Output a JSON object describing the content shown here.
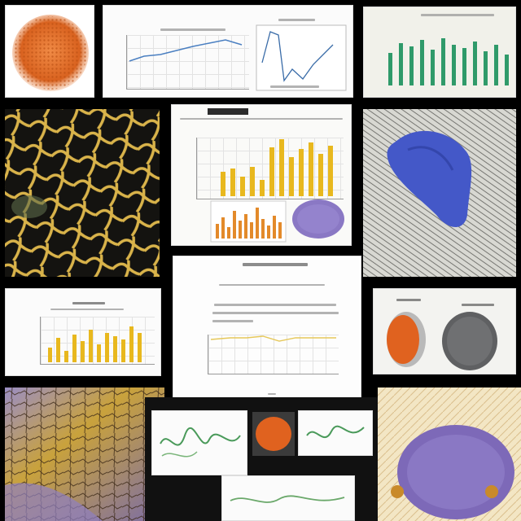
{
  "colors": {
    "background": "#000000",
    "paper": "#f6f6f3",
    "bar_yellow": "#e8b81e",
    "bar_orange": "#e38a2a",
    "line_blue": "#4a7fc1",
    "bar_green": "#2f9a6a",
    "cell_blue": "#4458c8",
    "tissue_purple": "#8a78c4",
    "tissue_orange": "#e0621f",
    "network_gold": "#d9b34a"
  },
  "tiles": [
    {
      "id": "orange-sphere",
      "kind": "micrograph"
    },
    {
      "id": "line-plots-panel",
      "kind": "figure"
    },
    {
      "id": "green-bars-panel",
      "kind": "figure"
    },
    {
      "id": "gold-network",
      "kind": "micrograph"
    },
    {
      "id": "bar-charts-panel",
      "kind": "figure"
    },
    {
      "id": "blue-cell",
      "kind": "micrograph"
    },
    {
      "id": "yellow-bars-panel",
      "kind": "figure"
    },
    {
      "id": "slide-line-chart",
      "kind": "figure"
    },
    {
      "id": "orange-grey-organs",
      "kind": "figure"
    },
    {
      "id": "purple-yellow-tissue",
      "kind": "micrograph"
    },
    {
      "id": "small-panels-strip",
      "kind": "figure"
    },
    {
      "id": "purple-organ",
      "kind": "micrograph"
    }
  ]
}
